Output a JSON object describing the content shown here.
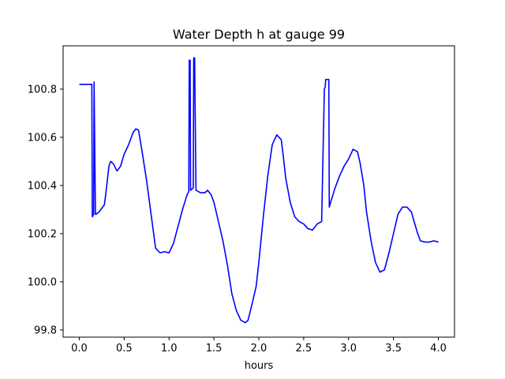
{
  "chart_data": {
    "type": "line",
    "title": "Water Depth h at gauge 99",
    "xlabel": "hours",
    "ylabel": "",
    "xlim": [
      -0.18,
      4.18
    ],
    "ylim": [
      99.77,
      100.98
    ],
    "xticks": [
      0.0,
      0.5,
      1.0,
      1.5,
      2.0,
      2.5,
      3.0,
      3.5,
      4.0
    ],
    "xtick_labels": [
      "0.0",
      "0.5",
      "1.0",
      "1.5",
      "2.0",
      "2.5",
      "3.0",
      "3.5",
      "4.0"
    ],
    "yticks": [
      99.8,
      100.0,
      100.2,
      100.4,
      100.6,
      100.8
    ],
    "ytick_labels": [
      "99.8",
      "100.0",
      "100.2",
      "100.4",
      "100.6",
      "100.8"
    ],
    "grid": false,
    "series": [
      {
        "color": "#0000ff",
        "x": [
          0.0,
          0.14,
          0.145,
          0.16,
          0.165,
          0.18,
          0.185,
          0.22,
          0.28,
          0.3,
          0.33,
          0.35,
          0.38,
          0.42,
          0.46,
          0.5,
          0.55,
          0.6,
          0.63,
          0.66,
          0.7,
          0.75,
          0.8,
          0.85,
          0.9,
          0.95,
          1.0,
          1.05,
          1.1,
          1.15,
          1.2,
          1.22,
          1.225,
          1.235,
          1.24,
          1.27,
          1.275,
          1.285,
          1.3,
          1.35,
          1.4,
          1.43,
          1.47,
          1.5,
          1.55,
          1.6,
          1.65,
          1.7,
          1.75,
          1.8,
          1.85,
          1.88,
          1.92,
          1.97,
          2.0,
          2.05,
          2.1,
          2.15,
          2.2,
          2.25,
          2.27,
          2.3,
          2.35,
          2.4,
          2.45,
          2.5,
          2.55,
          2.6,
          2.65,
          2.7,
          2.73,
          2.74,
          2.745,
          2.78,
          2.785,
          2.8,
          2.85,
          2.9,
          2.95,
          3.0,
          3.05,
          3.1,
          3.13,
          3.17,
          3.2,
          3.25,
          3.3,
          3.35,
          3.4,
          3.45,
          3.5,
          3.55,
          3.6,
          3.65,
          3.7,
          3.73,
          3.77,
          3.8,
          3.85,
          3.9,
          3.95,
          4.0
        ],
        "y": [
          100.82,
          100.82,
          100.27,
          100.28,
          100.83,
          100.28,
          100.28,
          100.29,
          100.32,
          100.38,
          100.48,
          100.5,
          100.49,
          100.46,
          100.48,
          100.53,
          100.57,
          100.62,
          100.635,
          100.63,
          100.54,
          100.42,
          100.28,
          100.14,
          100.12,
          100.125,
          100.12,
          100.16,
          100.23,
          100.3,
          100.36,
          100.375,
          100.92,
          100.92,
          100.38,
          100.39,
          100.93,
          100.93,
          100.38,
          100.37,
          100.37,
          100.38,
          100.36,
          100.33,
          100.25,
          100.17,
          100.07,
          99.95,
          99.88,
          99.84,
          99.83,
          99.84,
          99.9,
          99.98,
          100.08,
          100.27,
          100.44,
          100.57,
          100.61,
          100.59,
          100.53,
          100.43,
          100.33,
          100.27,
          100.25,
          100.24,
          100.22,
          100.215,
          100.24,
          100.25,
          100.8,
          100.81,
          100.84,
          100.84,
          100.31,
          100.33,
          100.39,
          100.44,
          100.48,
          100.51,
          100.55,
          100.54,
          100.49,
          100.4,
          100.29,
          100.17,
          100.08,
          100.04,
          100.05,
          100.12,
          100.2,
          100.28,
          100.31,
          100.31,
          100.29,
          100.25,
          100.2,
          100.17,
          100.165,
          100.165,
          100.17,
          100.165
        ]
      }
    ]
  }
}
